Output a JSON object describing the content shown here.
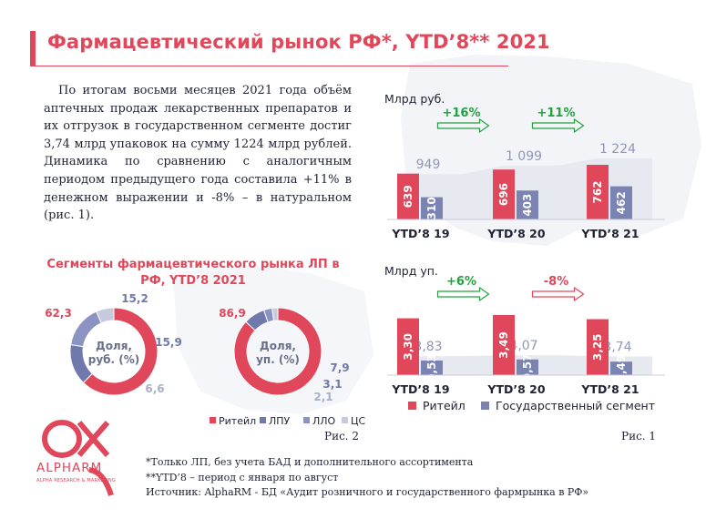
{
  "header": {
    "title": "Фармацевтический рынок РФ*, YTD’8** 2021"
  },
  "intro": {
    "paragraph": "По итогам восьми месяцев 2021 года объём аптечных продаж лекарственных препаратов и их отгрузок в государственном сегменте достиг 3,74 млрд упаковок на сумму 1224 млрд рублей. Динамика по сравнению с аналогичным периодом предыдущего года составила +11% в денежном выражении и -8% – в натуральном (рис. 1)."
  },
  "segments": {
    "title": "Сегменты фармацевтического рынка ЛП в РФ, YTD’8 2021",
    "caption": "Рис. 2"
  },
  "fig1": {
    "caption": "Рис. 1"
  },
  "logo": {
    "name": "ALPHARM",
    "subtitle": "ALPHA RESEARCH & MARKETING"
  },
  "footnotes": {
    "line1": "*Только ЛП, без учета БАД и дополнительного ассортимента",
    "line2": "**YTD’8 – период с января по август",
    "line3": "Источник: AlphaRM - БД «Аудит розничного и государственного фармрынка в РФ»"
  },
  "colors": {
    "retail": "#e0475a",
    "state": "#7a83b2",
    "total_band": "#e7e9f1",
    "lpu": "#6f79ab",
    "llo": "#8a93c2",
    "cs": "#c6cadf",
    "growth_pos": "#22a13f",
    "growth_neg": "#e0475a",
    "accent": "#e0475a"
  },
  "chart_data": [
    {
      "id": "rub",
      "type": "bar",
      "ylabel": "Млрд руб.",
      "categories": [
        "YTD’8 19",
        "YTD’8 20",
        "YTD’8 21"
      ],
      "series": [
        {
          "name": "Ритейл",
          "values": [
            639,
            696,
            762
          ],
          "labels": [
            "639",
            "696",
            "762"
          ]
        },
        {
          "name": "Государственный сегмент",
          "values": [
            310,
            403,
            462
          ],
          "labels": [
            "310",
            "403",
            "462"
          ]
        }
      ],
      "totals": [
        949,
        1099,
        1224
      ],
      "total_labels": [
        "949",
        "1 099",
        "1 224"
      ],
      "growth": [
        "+16%",
        "+11%"
      ]
    },
    {
      "id": "pack",
      "type": "bar",
      "ylabel": "Млрд уп.",
      "categories": [
        "YTD’8 19",
        "YTD’8 20",
        "YTD’8 21"
      ],
      "series": [
        {
          "name": "Ритейл",
          "values": [
            3.3,
            3.49,
            3.25
          ],
          "labels": [
            "3,30",
            "3,49",
            "3,25"
          ]
        },
        {
          "name": "Государственный сегмент",
          "values": [
            0.53,
            0.57,
            0.49
          ],
          "labels": [
            "0,53",
            "0,57",
            "0,49"
          ]
        }
      ],
      "totals": [
        3.83,
        4.07,
        3.74
      ],
      "total_labels": [
        "3,83",
        "4,07",
        "3,74"
      ],
      "growth": [
        "+6%",
        "-8%"
      ],
      "legend": [
        "Ритейл",
        "Государственный сегмент"
      ]
    },
    {
      "id": "donut_rub",
      "type": "pie",
      "center_label": "Доля, руб. (%)",
      "center_lines": [
        "Доля,",
        "руб. (%)"
      ],
      "categories": [
        "Ритейл",
        "ЛПУ",
        "ЛЛО",
        "ЦС"
      ],
      "values": [
        62.3,
        15.2,
        15.9,
        6.6
      ],
      "labels": [
        "62,3",
        "15,2",
        "15,9",
        "6,6"
      ]
    },
    {
      "id": "donut_pack",
      "type": "pie",
      "center_label": "Доля, уп. (%)",
      "center_lines": [
        "Доля,",
        "уп. (%)"
      ],
      "categories": [
        "Ритейл",
        "ЛПУ",
        "ЛЛО",
        "ЦС"
      ],
      "values": [
        86.9,
        7.9,
        3.1,
        2.1
      ],
      "labels": [
        "86,9",
        "7,9",
        "3,1",
        "2,1"
      ],
      "legend": [
        "Ритейл",
        "ЛПУ",
        "ЛЛО",
        "ЦС"
      ]
    }
  ]
}
